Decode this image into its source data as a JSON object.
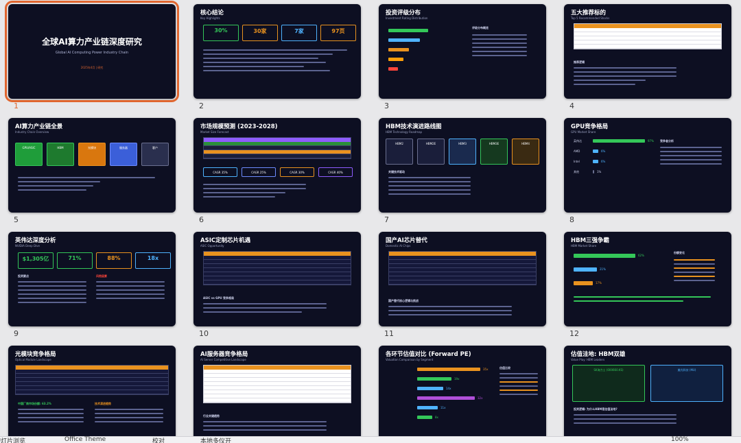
{
  "slides": [
    {
      "n": "1",
      "title": "全球AI算力产业链深度研究",
      "subtitle": "Global AI Computing Power Industry Chain",
      "date": "2025年4月 | 研究"
    },
    {
      "n": "2",
      "title": "核心结论",
      "subtitle": "Key Highlights",
      "kpis": [
        "30%",
        "30家",
        "7家",
        "97页"
      ]
    },
    {
      "n": "3",
      "title": "投资评级分布",
      "subtitle": "Investment Rating Distribution",
      "side_title": "评级分布概览"
    },
    {
      "n": "4",
      "title": "五大推荐标的",
      "subtitle": "Top 5 Recommended Stocks",
      "side_title": "推荐逻辑"
    },
    {
      "n": "5",
      "title": "AI算力产业链全景",
      "subtitle": "Industry Chain Overview",
      "boxes": [
        "GPU/ASIC",
        "HBM",
        "光模块",
        "服务器",
        "客户"
      ]
    },
    {
      "n": "6",
      "title": "市场规模预测 (2023-2028)",
      "subtitle": "Market Size Forecast",
      "cagr": [
        "CAGR 35%",
        "CAGR 25%",
        "CAGR 30%",
        "CAGR 40%"
      ]
    },
    {
      "n": "7",
      "title": "HBM技术演进路线图",
      "subtitle": "HBM Technology Roadmap",
      "gens": [
        "HBM2",
        "HBM2E",
        "HBM3",
        "HBM3E",
        "HBM4"
      ],
      "side_title": "关键技术驱动"
    },
    {
      "n": "8",
      "title": "GPU竞争格局",
      "subtitle": "GPU Market Share",
      "vendors": [
        "英伟达",
        "AMD",
        "Intel",
        "其他"
      ],
      "shares": [
        "97%",
        "6%",
        "6%",
        "1%"
      ],
      "side_title": "竞争者分析"
    },
    {
      "n": "9",
      "title": "英伟达深度分析",
      "subtitle": "NVIDIA Deep Dive",
      "kpis": [
        "$1,305亿",
        "71%",
        "88%",
        "18x"
      ],
      "left_title": "投资要点",
      "right_title": "风险因素"
    },
    {
      "n": "10",
      "title": "ASIC定制芯片机遇",
      "subtitle": "ASIC Opportunity",
      "section_title": "ASIC vs GPU 竞争格局"
    },
    {
      "n": "11",
      "title": "国产AI芯片替代",
      "subtitle": "Domestic AI Chips",
      "section_title": "国产替代核心逻辑与挑战"
    },
    {
      "n": "12",
      "title": "HBM三强争霸",
      "subtitle": "HBM Market Share",
      "bars": [
        "62%",
        "21%",
        "17%"
      ],
      "side_title": "份额变化"
    },
    {
      "n": "13",
      "title": "光模块竞争格局",
      "subtitle": "Optical Module Landscape",
      "left_title": "中国厂商市场份额: 63.2%",
      "right_title": "技术演进趋势"
    },
    {
      "n": "14",
      "title": "AI服务器竞争格局",
      "subtitle": "AI Server Competitive Landscape",
      "section_title": "行业关键趋势"
    },
    {
      "n": "15",
      "title": "各环节估值对比 (Forward PE)",
      "subtitle": "Valuation Comparison by Segment",
      "bars": [
        "35x",
        "19x",
        "14x",
        "32x",
        "11x",
        "8x"
      ],
      "side_title": "估值比较"
    },
    {
      "n": "16",
      "title": "估值洼地: HBM双雄",
      "subtitle": "Value Play: HBM Leaders",
      "cards": [
        "SK海力士 (000660.KS)",
        "美光科技 (MU)"
      ],
      "section_title": "投资逻辑: 为什么HBM是估值洼地?"
    }
  ],
  "statusbar": {
    "left": "幻灯片浏览",
    "theme": "Office Theme",
    "check": "校对",
    "access": "本地多仪开",
    "zoom": "100%"
  },
  "colors": {
    "accent": "#e0662f",
    "slide_bg": "#0d0f22"
  }
}
